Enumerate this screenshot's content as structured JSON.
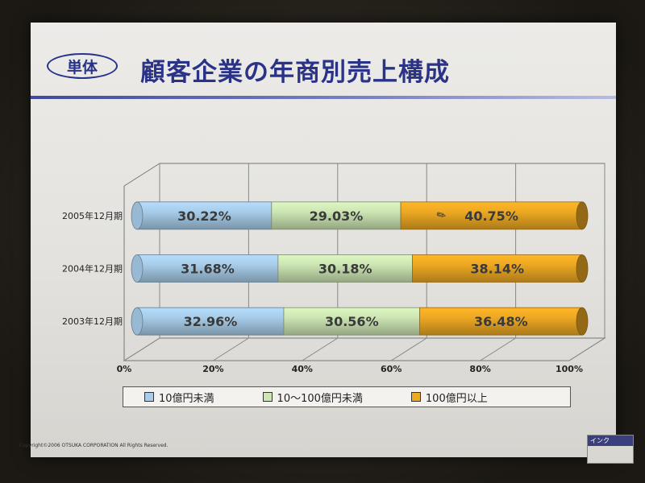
{
  "slide": {
    "badge": "単体",
    "title": "顧客企業の年商別売上構成",
    "copyright": "Copyright©2006 OTSUKA CORPORATION All Rights Reserved.",
    "ink_label": "インク"
  },
  "colors": {
    "title": "#2a3388",
    "blue": "#a8cdea",
    "green": "#cde6b4",
    "orange": "#eea923"
  },
  "chart_data": {
    "type": "bar",
    "stacked": "percent",
    "orientation": "horizontal",
    "categories": [
      "2005年12月期",
      "2004年12月期",
      "2003年12月期"
    ],
    "series": [
      {
        "name": "10億円未満",
        "values": [
          30.22,
          31.68,
          32.96
        ],
        "labels": [
          "30.22%",
          "31.68%",
          "32.96%"
        ],
        "color": "#a8cdea"
      },
      {
        "name": "10～100億円未満",
        "values": [
          29.03,
          30.18,
          30.56
        ],
        "labels": [
          "29.03%",
          "30.18%",
          "30.56%"
        ],
        "color": "#cde6b4"
      },
      {
        "name": "100億円以上",
        "values": [
          40.75,
          38.14,
          36.48
        ],
        "labels": [
          "40.75%",
          "38.14%",
          "36.48%"
        ],
        "color": "#eea923"
      }
    ],
    "xticks": [
      "0%",
      "20%",
      "40%",
      "60%",
      "80%",
      "100%"
    ],
    "xlim": [
      0,
      100
    ],
    "grid": true,
    "legend": "bottom"
  }
}
